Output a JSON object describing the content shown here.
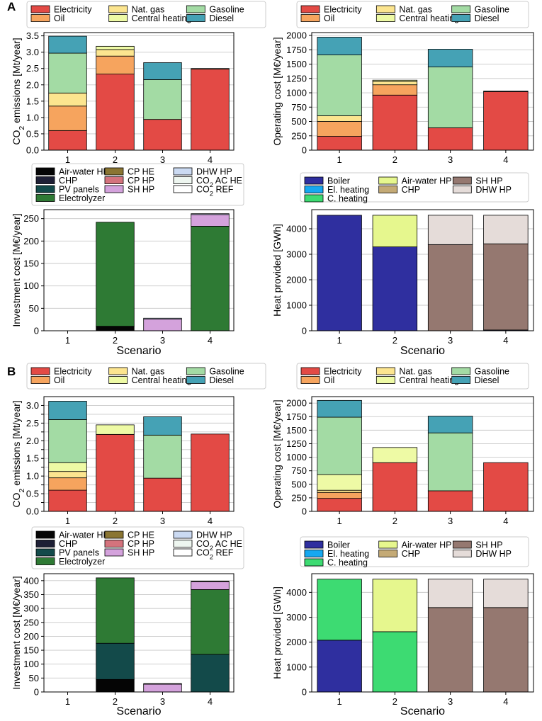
{
  "colors": {
    "Electricity": "#e34a45",
    "Oil": "#f6a45e",
    "Nat. gas": "#fce58f",
    "Central heating": "#eefaa5",
    "Gasoline": "#a3dba4",
    "Diesel": "#45a2b5",
    "Air-water HP": "#050505",
    "CHP": "#1e1f35",
    "PV panels": "#134a4a",
    "Electrolyzer": "#2e7a34",
    "CP HE": "#8a7532",
    "CP HP": "#d4737d",
    "SH HP": "#d4a2dc",
    "DHW HP": "#cbdaf2",
    "CO2 AC HE": "#eef6f0",
    "CO2 REF": "#ffffff",
    "Boiler": "#2f2f9f",
    "El. heating": "#16a8f0",
    "C. heating": "#3ddb72",
    "Air-water HP (heat)": "#e6f78e",
    "CHP (heat)": "#c4aa76",
    "DHW HP (heat)": "#e5dcd9",
    "SH HP (heat)": "#957870"
  },
  "panel_labels": [
    "A",
    "B"
  ],
  "chart_data": [
    {
      "type": "bar",
      "stacked": true,
      "panel": "A",
      "position": "top-left",
      "title": "",
      "xlabel": "",
      "ylabel": "CO₂ emissions [Mt/year]",
      "ylim": [
        0,
        3.6
      ],
      "yticks": [
        0.0,
        0.5,
        1.0,
        1.5,
        2.0,
        2.5,
        3.0,
        3.5
      ],
      "ytick_labels": [
        "0.0",
        "0.5",
        "1.0",
        "1.5",
        "2.0",
        "2.5",
        "3.0",
        "3.5"
      ],
      "categories": [
        "1",
        "2",
        "3",
        "4"
      ],
      "legend": {
        "placement": "top",
        "columns": [
          [
            "Electricity",
            "Oil"
          ],
          [
            "Nat. gas",
            "Central heating"
          ],
          [
            "Gasoline",
            "Diesel"
          ]
        ]
      },
      "series": [
        {
          "name": "Electricity",
          "color_key": "Electricity",
          "values": [
            0.6,
            2.33,
            0.94,
            2.48
          ]
        },
        {
          "name": "Oil",
          "color_key": "Oil",
          "values": [
            0.75,
            0.55,
            0.0,
            0.0
          ]
        },
        {
          "name": "Nat. gas",
          "color_key": "Nat. gas",
          "values": [
            0.4,
            0.2,
            0.0,
            0.0
          ]
        },
        {
          "name": "Central heating",
          "color_key": "Central heating",
          "values": [
            0.0,
            0.1,
            0.0,
            0.02
          ]
        },
        {
          "name": "Gasoline",
          "color_key": "Gasoline",
          "values": [
            1.22,
            0.0,
            1.22,
            0.0
          ]
        },
        {
          "name": "Diesel",
          "color_key": "Diesel",
          "values": [
            0.52,
            0.0,
            0.52,
            0.0
          ]
        }
      ]
    },
    {
      "type": "bar",
      "stacked": true,
      "panel": "A",
      "position": "top-right",
      "title": "",
      "xlabel": "",
      "ylabel": "Operating cost [M€/year]",
      "ylim": [
        0,
        2050
      ],
      "yticks": [
        0,
        250,
        500,
        750,
        1000,
        1250,
        1500,
        1750,
        2000
      ],
      "ytick_labels": [
        "0",
        "250",
        "500",
        "750",
        "1000",
        "1250",
        "1500",
        "1750",
        "2000"
      ],
      "categories": [
        "1",
        "2",
        "3",
        "4"
      ],
      "legend": {
        "placement": "top",
        "columns": [
          [
            "Electricity",
            "Oil"
          ],
          [
            "Nat. gas",
            "Central heating"
          ],
          [
            "Gasoline",
            "Diesel"
          ]
        ]
      },
      "series": [
        {
          "name": "Electricity",
          "color_key": "Electricity",
          "values": [
            240,
            960,
            390,
            1020
          ]
        },
        {
          "name": "Oil",
          "color_key": "Oil",
          "values": [
            260,
            180,
            0,
            0
          ]
        },
        {
          "name": "Nat. gas",
          "color_key": "Nat. gas",
          "values": [
            100,
            60,
            0,
            0
          ]
        },
        {
          "name": "Central heating",
          "color_key": "Central heating",
          "values": [
            0,
            20,
            0,
            10
          ]
        },
        {
          "name": "Gasoline",
          "color_key": "Gasoline",
          "values": [
            1060,
            0,
            1060,
            0
          ]
        },
        {
          "name": "Diesel",
          "color_key": "Diesel",
          "values": [
            310,
            0,
            310,
            0
          ]
        }
      ]
    },
    {
      "type": "bar",
      "stacked": true,
      "panel": "A",
      "position": "middle-left",
      "title": "",
      "xlabel": "Scenario",
      "ylabel": "Investment cost [M€/year]",
      "ylim": [
        0,
        270
      ],
      "yticks": [
        0,
        50,
        100,
        150,
        200,
        250
      ],
      "ytick_labels": [
        "0",
        "50",
        "100",
        "150",
        "200",
        "250"
      ],
      "categories": [
        "1",
        "2",
        "3",
        "4"
      ],
      "legend": {
        "placement": "top",
        "columns": [
          [
            "Air-water HP",
            "CHP",
            "PV panels",
            "Electrolyzer"
          ],
          [
            "CP HE",
            "CP HP",
            "SH HP"
          ],
          [
            "DHW HP",
            "CO₂ AC HE",
            "CO₂ REF"
          ]
        ]
      },
      "series": [
        {
          "name": "Air-water HP",
          "color_key": "Air-water HP",
          "values": [
            0,
            10,
            0,
            0
          ]
        },
        {
          "name": "CHP",
          "color_key": "CHP",
          "values": [
            0,
            0,
            0,
            0
          ]
        },
        {
          "name": "PV panels",
          "color_key": "PV panels",
          "values": [
            0,
            0,
            0,
            0
          ]
        },
        {
          "name": "Electrolyzer",
          "color_key": "Electrolyzer",
          "values": [
            0,
            232,
            0,
            233
          ]
        },
        {
          "name": "CP HE",
          "color_key": "CP HE",
          "values": [
            0,
            0,
            0,
            0
          ]
        },
        {
          "name": "CP HP",
          "color_key": "CP HP",
          "values": [
            0,
            0,
            0,
            0
          ]
        },
        {
          "name": "SH HP",
          "color_key": "SH HP",
          "values": [
            0,
            0,
            26,
            26
          ]
        },
        {
          "name": "DHW HP",
          "color_key": "DHW HP",
          "values": [
            0,
            0,
            2,
            2
          ]
        },
        {
          "name": "CO₂ AC HE",
          "color_key": "CO2 AC HE",
          "values": [
            0,
            0,
            0,
            0
          ]
        },
        {
          "name": "CO₂ REF",
          "color_key": "CO2 REF",
          "values": [
            0,
            0,
            0,
            0
          ]
        }
      ]
    },
    {
      "type": "bar",
      "stacked": true,
      "panel": "A",
      "position": "middle-right",
      "title": "",
      "xlabel": "Scenario",
      "ylabel": "Heat provided [GWh]",
      "ylim": [
        0,
        4750
      ],
      "yticks": [
        0,
        1000,
        2000,
        3000,
        4000
      ],
      "ytick_labels": [
        "0",
        "1000",
        "2000",
        "3000",
        "4000"
      ],
      "categories": [
        "1",
        "2",
        "3",
        "4"
      ],
      "legend": {
        "placement": "top",
        "columns": [
          [
            "Boiler",
            "El. heating",
            "C. heating"
          ],
          [
            "Air-water HP",
            "CHP"
          ],
          [
            "SH HP",
            "DHW HP"
          ]
        ]
      },
      "legend_color_keys": {
        "Boiler": "Boiler",
        "El. heating": "El. heating",
        "C. heating": "C. heating",
        "Air-water HP": "Air-water HP (heat)",
        "CHP": "CHP (heat)",
        "SH HP": "SH HP (heat)",
        "DHW HP": "DHW HP (heat)"
      },
      "series": [
        {
          "name": "Boiler",
          "color_key": "Boiler",
          "values": [
            4530,
            3290,
            0,
            30
          ]
        },
        {
          "name": "El. heating",
          "color_key": "El. heating",
          "values": [
            0,
            0,
            0,
            0
          ]
        },
        {
          "name": "C. heating",
          "color_key": "C. heating",
          "values": [
            0,
            0,
            0,
            0
          ]
        },
        {
          "name": "Air-water HP",
          "color_key": "Air-water HP (heat)",
          "values": [
            0,
            1240,
            0,
            0
          ]
        },
        {
          "name": "CHP",
          "color_key": "CHP (heat)",
          "values": [
            0,
            0,
            0,
            0
          ]
        },
        {
          "name": "SH HP",
          "color_key": "SH HP (heat)",
          "values": [
            0,
            0,
            3380,
            3380
          ]
        },
        {
          "name": "DHW HP",
          "color_key": "DHW HP (heat)",
          "values": [
            0,
            0,
            1150,
            1120
          ]
        }
      ]
    },
    {
      "type": "bar",
      "stacked": true,
      "panel": "B",
      "position": "top-left",
      "title": "",
      "xlabel": "",
      "ylabel": "CO₂ emissions [Mt/year]",
      "ylim": [
        0,
        3.25
      ],
      "yticks": [
        0.0,
        0.25,
        0.5,
        0.75,
        1.0,
        1.25,
        1.5,
        1.75,
        2.0,
        2.25,
        2.5,
        2.75,
        3.0
      ],
      "ytick_labels": [
        "0.0",
        "",
        "0.5",
        "",
        "1.0",
        "",
        "1.5",
        "",
        "2.0",
        "",
        "2.5",
        "",
        "3.0"
      ],
      "categories": [
        "1",
        "2",
        "3",
        "4"
      ],
      "legend": {
        "placement": "top",
        "columns": [
          [
            "Electricity",
            "Oil"
          ],
          [
            "Nat. gas",
            "Central heating"
          ],
          [
            "Gasoline",
            "Diesel"
          ]
        ]
      },
      "series": [
        {
          "name": "Electricity",
          "color_key": "Electricity",
          "values": [
            0.6,
            2.18,
            0.94,
            2.19
          ]
        },
        {
          "name": "Oil",
          "color_key": "Oil",
          "values": [
            0.35,
            0.0,
            0.0,
            0.0
          ]
        },
        {
          "name": "Nat. gas",
          "color_key": "Nat. gas",
          "values": [
            0.18,
            0.0,
            0.0,
            0.0
          ]
        },
        {
          "name": "Central heating",
          "color_key": "Central heating",
          "values": [
            0.25,
            0.27,
            0.0,
            0.0
          ]
        },
        {
          "name": "Gasoline",
          "color_key": "Gasoline",
          "values": [
            1.22,
            0.0,
            1.22,
            0.0
          ]
        },
        {
          "name": "Diesel",
          "color_key": "Diesel",
          "values": [
            0.52,
            0.0,
            0.52,
            0.0
          ]
        }
      ]
    },
    {
      "type": "bar",
      "stacked": true,
      "panel": "B",
      "position": "top-right",
      "title": "",
      "xlabel": "",
      "ylabel": "Operating cost [M€/year]",
      "ylim": [
        0,
        2120
      ],
      "yticks": [
        0,
        250,
        500,
        750,
        1000,
        1250,
        1500,
        1750,
        2000
      ],
      "ytick_labels": [
        "0",
        "250",
        "500",
        "750",
        "1000",
        "1250",
        "1500",
        "1750",
        "2000"
      ],
      "categories": [
        "1",
        "2",
        "3",
        "4"
      ],
      "legend": {
        "placement": "top",
        "columns": [
          [
            "Electricity",
            "Oil"
          ],
          [
            "Nat. gas",
            "Central heating"
          ],
          [
            "Gasoline",
            "Diesel"
          ]
        ]
      },
      "series": [
        {
          "name": "Electricity",
          "color_key": "Electricity",
          "values": [
            240,
            900,
            380,
            900
          ]
        },
        {
          "name": "Oil",
          "color_key": "Oil",
          "values": [
            110,
            0,
            0,
            0
          ]
        },
        {
          "name": "Nat. gas",
          "color_key": "Nat. gas",
          "values": [
            40,
            0,
            0,
            0
          ]
        },
        {
          "name": "Central heating",
          "color_key": "Central heating",
          "values": [
            290,
            280,
            0,
            0
          ]
        },
        {
          "name": "Gasoline",
          "color_key": "Gasoline",
          "values": [
            1060,
            0,
            1070,
            0
          ]
        },
        {
          "name": "Diesel",
          "color_key": "Diesel",
          "values": [
            310,
            0,
            310,
            0
          ]
        }
      ]
    },
    {
      "type": "bar",
      "stacked": true,
      "panel": "B",
      "position": "bottom-left",
      "title": "",
      "xlabel": "Scenario",
      "ylabel": "Investment cost [M€/year]",
      "ylim": [
        0,
        425
      ],
      "yticks": [
        0,
        50,
        100,
        150,
        200,
        250,
        300,
        350,
        400
      ],
      "ytick_labels": [
        "0",
        "50",
        "100",
        "150",
        "200",
        "250",
        "300",
        "350",
        "400"
      ],
      "categories": [
        "1",
        "2",
        "3",
        "4"
      ],
      "legend": {
        "placement": "top",
        "columns": [
          [
            "Air-water HP",
            "CHP",
            "PV panels",
            "Electrolyzer"
          ],
          [
            "CP HE",
            "CP HP",
            "SH HP"
          ],
          [
            "DHW HP",
            "CO₂ AC HE",
            "CO₂ REF"
          ]
        ]
      },
      "series": [
        {
          "name": "Air-water HP",
          "color_key": "Air-water HP",
          "values": [
            0,
            45,
            0,
            0
          ]
        },
        {
          "name": "CHP",
          "color_key": "CHP",
          "values": [
            0,
            0,
            0,
            0
          ]
        },
        {
          "name": "PV panels",
          "color_key": "PV panels",
          "values": [
            0,
            130,
            0,
            135
          ]
        },
        {
          "name": "Electrolyzer",
          "color_key": "Electrolyzer",
          "values": [
            0,
            235,
            0,
            233
          ]
        },
        {
          "name": "CP HE",
          "color_key": "CP HE",
          "values": [
            0,
            0,
            0,
            0
          ]
        },
        {
          "name": "CP HP",
          "color_key": "CP HP",
          "values": [
            0,
            0,
            0,
            0
          ]
        },
        {
          "name": "SH HP",
          "color_key": "SH HP",
          "values": [
            0,
            0,
            28,
            28
          ]
        },
        {
          "name": "DHW HP",
          "color_key": "DHW HP",
          "values": [
            0,
            0,
            2,
            2
          ]
        },
        {
          "name": "CO₂ AC HE",
          "color_key": "CO2 AC HE",
          "values": [
            0,
            0,
            0,
            0
          ]
        },
        {
          "name": "CO₂ REF",
          "color_key": "CO2 REF",
          "values": [
            0,
            0,
            0,
            0
          ]
        }
      ]
    },
    {
      "type": "bar",
      "stacked": true,
      "panel": "B",
      "position": "bottom-right",
      "title": "",
      "xlabel": "Scenario",
      "ylabel": "Heat provided [GWh]",
      "ylim": [
        0,
        4750
      ],
      "yticks": [
        0,
        1000,
        2000,
        3000,
        4000
      ],
      "ytick_labels": [
        "0",
        "1000",
        "2000",
        "3000",
        "4000"
      ],
      "categories": [
        "1",
        "2",
        "3",
        "4"
      ],
      "legend": {
        "placement": "top",
        "columns": [
          [
            "Boiler",
            "El. heating",
            "C. heating"
          ],
          [
            "Air-water HP",
            "CHP"
          ],
          [
            "SH HP",
            "DHW HP"
          ]
        ]
      },
      "legend_color_keys": {
        "Boiler": "Boiler",
        "El. heating": "El. heating",
        "C. heating": "C. heating",
        "Air-water HP": "Air-water HP (heat)",
        "CHP": "CHP (heat)",
        "SH HP": "SH HP (heat)",
        "DHW HP": "DHW HP (heat)"
      },
      "series": [
        {
          "name": "Boiler",
          "color_key": "Boiler",
          "values": [
            2080,
            0,
            0,
            0
          ]
        },
        {
          "name": "El. heating",
          "color_key": "El. heating",
          "values": [
            0,
            0,
            0,
            0
          ]
        },
        {
          "name": "C. heating",
          "color_key": "C. heating",
          "values": [
            2450,
            2420,
            0,
            0
          ]
        },
        {
          "name": "Air-water HP",
          "color_key": "Air-water HP (heat)",
          "values": [
            0,
            2110,
            0,
            0
          ]
        },
        {
          "name": "CHP",
          "color_key": "CHP (heat)",
          "values": [
            0,
            0,
            0,
            0
          ]
        },
        {
          "name": "SH HP",
          "color_key": "SH HP (heat)",
          "values": [
            0,
            0,
            3390,
            3390
          ]
        },
        {
          "name": "DHW HP",
          "color_key": "DHW HP (heat)",
          "values": [
            0,
            0,
            1140,
            1140
          ]
        }
      ]
    }
  ]
}
